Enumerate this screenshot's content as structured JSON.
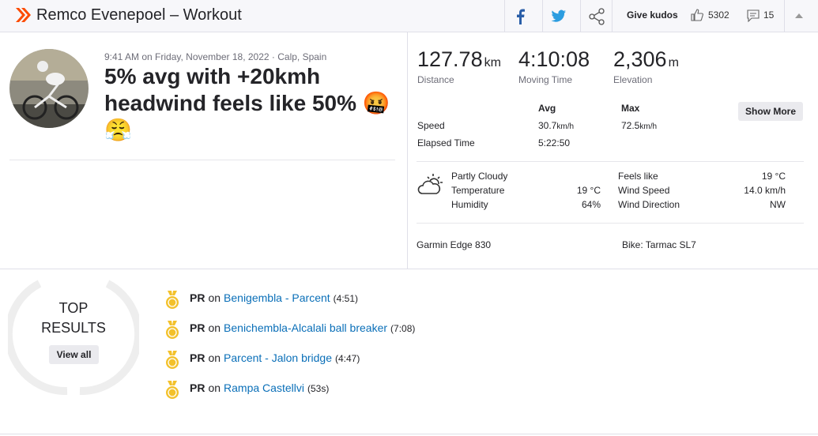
{
  "header": {
    "title": "Remco Evenepoel – Workout",
    "give_kudos": "Give kudos",
    "kudos_count": 5302,
    "comments_count": 15
  },
  "activity": {
    "meta": "9:41 AM on Friday, November 18, 2022 · Calp, Spain",
    "title": "5% avg with +20kmh headwind feels like 50% 🤬 😤"
  },
  "stats": [
    {
      "value": "127.78",
      "unit": "km",
      "label": "Distance"
    },
    {
      "value": "4:10:08",
      "label": "Moving Time"
    },
    {
      "value": "2,306",
      "unit": "m",
      "label": "Elevation"
    }
  ],
  "more_stats": {
    "columns": [
      "Avg",
      "Max"
    ],
    "rows": [
      {
        "label": "Speed",
        "avg": "30.7",
        "avg_unit": "km/h",
        "max": "72.5",
        "max_unit": "km/h"
      },
      {
        "label": "Elapsed Time",
        "avg": "5:22:50"
      }
    ],
    "button": "Show More"
  },
  "weather": {
    "left": [
      [
        "Partly Cloudy",
        ""
      ],
      [
        "Temperature",
        "19 °C"
      ],
      [
        "Humidity",
        "64%"
      ]
    ],
    "right": [
      [
        "Feels like",
        "19 °C"
      ],
      [
        "Wind Speed",
        "14.0 km/h"
      ],
      [
        "Wind Direction",
        "NW"
      ]
    ]
  },
  "gear": {
    "device": "Garmin Edge 830",
    "bike": "Bike: Tarmac SL7"
  },
  "results": {
    "heading": "TOP RESULTS",
    "view_all": "View all",
    "connector": "on",
    "items": [
      {
        "achievement": "PR",
        "segment": "Benigembla - Parcent",
        "time": "(4:51)"
      },
      {
        "achievement": "PR",
        "segment": "Benichembla-Alcalali ball breaker",
        "time": "(7:08)"
      },
      {
        "achievement": "PR",
        "segment": "Parcent - Jalon bridge",
        "time": "(4:47)"
      },
      {
        "achievement": "PR",
        "segment": "Rampa Castellvi",
        "time": "(53s)"
      }
    ]
  }
}
